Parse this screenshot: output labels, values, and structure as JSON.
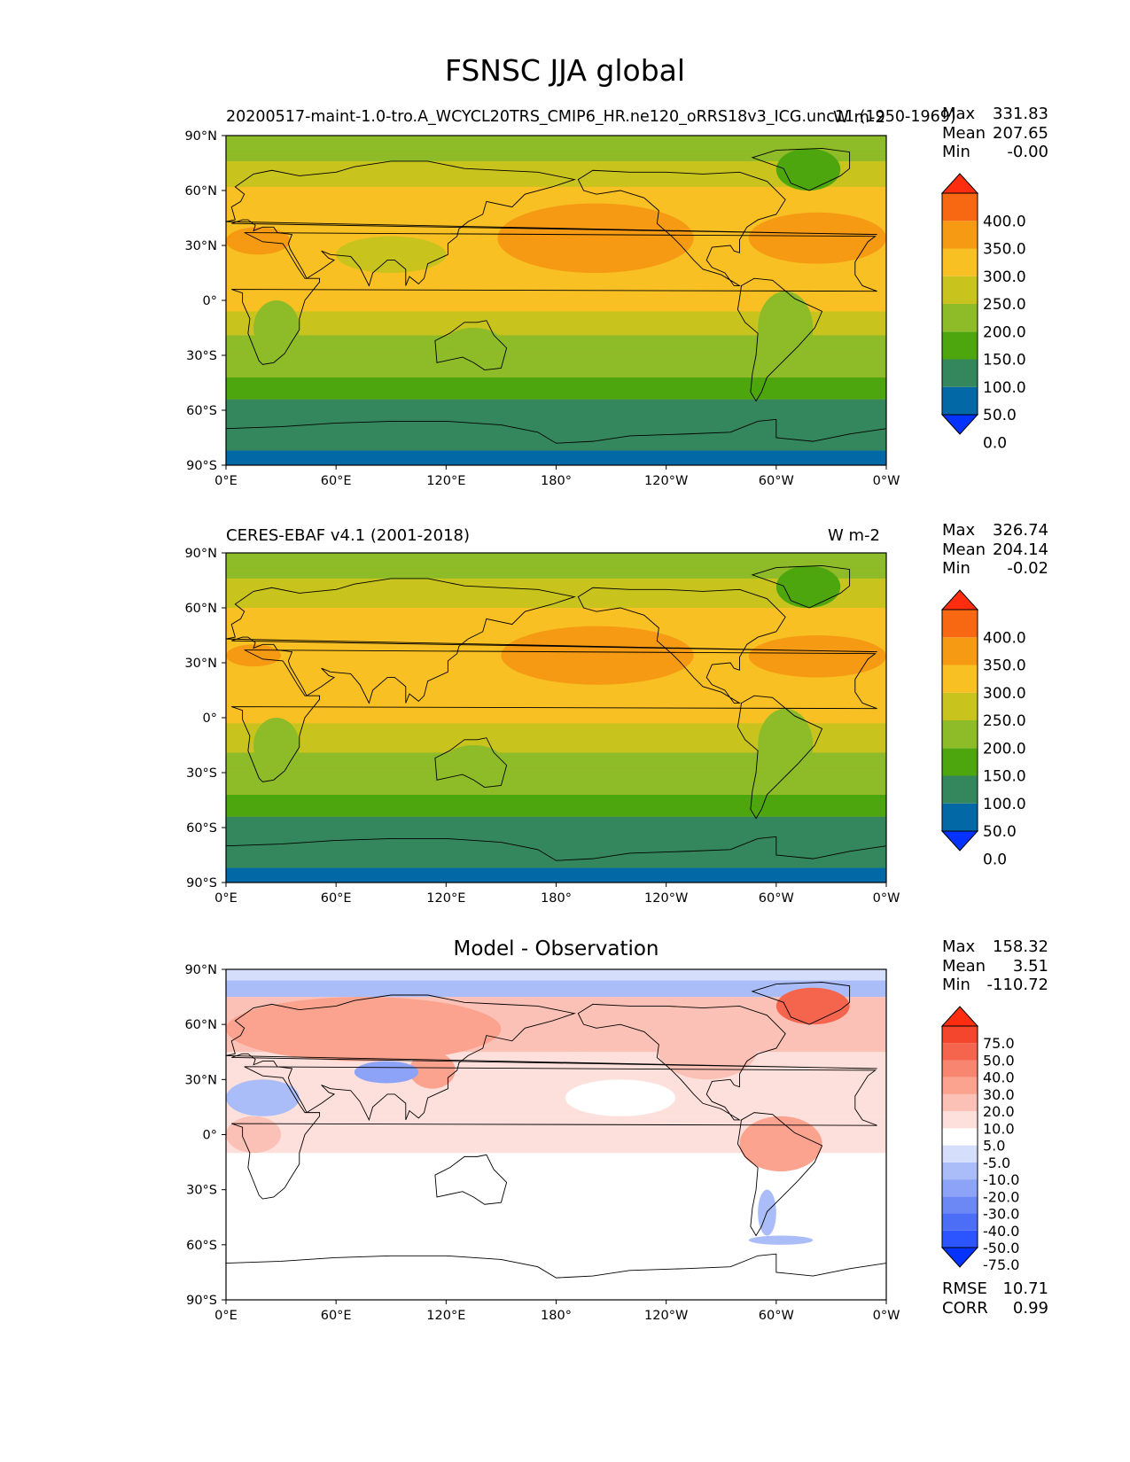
{
  "figure": {
    "title": "FSNSC JJA global"
  },
  "palette": {
    "abs_levels": [
      0,
      50,
      100,
      150,
      200,
      250,
      300,
      350,
      400
    ],
    "abs_colors": [
      "#0433ff",
      "#0369a6",
      "#34875c",
      "#4ea60f",
      "#8dbc28",
      "#c9c31e",
      "#f8c023",
      "#f69a13",
      "#f86812",
      "#ff2d10"
    ],
    "diff_levels": [
      -75,
      -50,
      -40,
      -30,
      -20,
      -10,
      -5,
      5,
      10,
      20,
      30,
      40,
      50,
      75
    ],
    "diff_colors": [
      "#0433ff",
      "#2c55ff",
      "#4c6ef7",
      "#6c88f5",
      "#8ca3f7",
      "#aabdf8",
      "#d5defb",
      "#ffffff",
      "#fde0db",
      "#fcc1b6",
      "#fca38f",
      "#f88570",
      "#f5654e",
      "#f4452d",
      "#ff2d10"
    ],
    "land_outline": "#000000"
  },
  "axes_labels": {
    "lat": [
      "90°N",
      "60°N",
      "30°N",
      "0°",
      "30°S",
      "60°S",
      "90°S"
    ],
    "lon": [
      "0°E",
      "60°E",
      "120°E",
      "180°",
      "120°W",
      "60°W",
      "0°W"
    ]
  },
  "chart_data": [
    {
      "type": "heatmap",
      "panel": "model",
      "title_left": "20200517-maint-1.0-tro.A_WCYCL20TRS_CMIP6_HR.ne120_oRRS18v3_ICG.unc11 (1950-1969)",
      "title_right": "W m-2",
      "stats": {
        "max_label": "Max",
        "max": "331.83",
        "mean_label": "Mean",
        "mean": "207.65",
        "min_label": "Min",
        "min": "-0.00"
      },
      "colorbar_ticks": [
        "400.0",
        "350.0",
        "300.0",
        "250.0",
        "200.0",
        "150.0",
        "100.0",
        "50.0",
        "0.0"
      ],
      "lat_range": [
        -90,
        90
      ],
      "lon_range": [
        0,
        360
      ],
      "zonal_bands": [
        {
          "lat": [
            -90,
            -82
          ],
          "value": 0
        },
        {
          "lat": [
            -82,
            -54
          ],
          "value": 50
        },
        {
          "lat": [
            -54,
            -42
          ],
          "value": 100
        },
        {
          "lat": [
            -42,
            -29
          ],
          "value": 150
        },
        {
          "lat": [
            -29,
            -19
          ],
          "value": 175
        },
        {
          "lat": [
            -19,
            -6
          ],
          "value": 225
        },
        {
          "lat": [
            -6,
            62
          ],
          "value": 275
        },
        {
          "lat": [
            62,
            76
          ],
          "value": 225
        },
        {
          "lat": [
            76,
            80
          ],
          "value": 175
        },
        {
          "lat": [
            80,
            90
          ],
          "value": 150
        }
      ],
      "patches": [
        {
          "lat": [
            15,
            53
          ],
          "lon": [
            148,
            255
          ],
          "value": 325
        },
        {
          "lat": [
            20,
            48
          ],
          "lon": [
            285,
            360
          ],
          "value": 325
        },
        {
          "lat": [
            25,
            40
          ],
          "lon": [
            0,
            35
          ],
          "value": 325
        },
        {
          "lat": [
            15,
            35
          ],
          "lon": [
            60,
            120
          ],
          "value": 225
        },
        {
          "lat": [
            -30,
            -15
          ],
          "lon": [
            120,
            150
          ],
          "value": 175
        },
        {
          "lat": [
            -35,
            5
          ],
          "lon": [
            290,
            320
          ],
          "value": 175
        },
        {
          "lat": [
            -30,
            0
          ],
          "lon": [
            15,
            40
          ],
          "value": 175
        },
        {
          "lat": [
            60,
            83
          ],
          "lon": [
            300,
            335
          ],
          "value": 125
        }
      ]
    },
    {
      "type": "heatmap",
      "panel": "observation",
      "title_left": "CERES-EBAF v4.1 (2001-2018)",
      "title_right": "W m-2",
      "stats": {
        "max_label": "Max",
        "max": "326.74",
        "mean_label": "Mean",
        "mean": "204.14",
        "min_label": "Min",
        "min": "-0.02"
      },
      "colorbar_ticks": [
        "400.0",
        "350.0",
        "300.0",
        "250.0",
        "200.0",
        "150.0",
        "100.0",
        "50.0",
        "0.0"
      ],
      "lat_range": [
        -90,
        90
      ],
      "lon_range": [
        0,
        360
      ],
      "zonal_bands": [
        {
          "lat": [
            -90,
            -82
          ],
          "value": 0
        },
        {
          "lat": [
            -82,
            -54
          ],
          "value": 50
        },
        {
          "lat": [
            -54,
            -42
          ],
          "value": 100
        },
        {
          "lat": [
            -42,
            -29
          ],
          "value": 150
        },
        {
          "lat": [
            -29,
            -19
          ],
          "value": 175
        },
        {
          "lat": [
            -19,
            -3
          ],
          "value": 225
        },
        {
          "lat": [
            -3,
            60
          ],
          "value": 275
        },
        {
          "lat": [
            60,
            76
          ],
          "value": 225
        },
        {
          "lat": [
            76,
            80
          ],
          "value": 175
        },
        {
          "lat": [
            80,
            90
          ],
          "value": 150
        }
      ],
      "patches": [
        {
          "lat": [
            18,
            50
          ],
          "lon": [
            150,
            255
          ],
          "value": 325
        },
        {
          "lat": [
            22,
            45
          ],
          "lon": [
            285,
            360
          ],
          "value": 325
        },
        {
          "lat": [
            28,
            40
          ],
          "lon": [
            0,
            30
          ],
          "value": 325
        },
        {
          "lat": [
            -30,
            -15
          ],
          "lon": [
            120,
            150
          ],
          "value": 175
        },
        {
          "lat": [
            -35,
            5
          ],
          "lon": [
            290,
            320
          ],
          "value": 175
        },
        {
          "lat": [
            -30,
            0
          ],
          "lon": [
            15,
            40
          ],
          "value": 175
        },
        {
          "lat": [
            60,
            83
          ],
          "lon": [
            300,
            335
          ],
          "value": 125
        }
      ]
    },
    {
      "type": "heatmap",
      "panel": "difference",
      "title_center": "Model - Observation",
      "stats": {
        "max_label": "Max",
        "max": "158.32",
        "mean_label": "Mean",
        "mean": "3.51",
        "min_label": "Min",
        "min": "-110.72"
      },
      "extra_stats": {
        "rmse_label": "RMSE",
        "rmse": "10.71",
        "corr_label": "CORR",
        "corr": "0.99"
      },
      "colorbar_ticks": [
        "75.0",
        "50.0",
        "40.0",
        "30.0",
        "20.0",
        "10.0",
        "5.0",
        "-5.0",
        "-10.0",
        "-20.0",
        "-30.0",
        "-40.0",
        "-50.0",
        "-75.0"
      ],
      "lat_range": [
        -90,
        90
      ],
      "lon_range": [
        0,
        360
      ],
      "zonal_bands": [
        {
          "lat": [
            -90,
            -60
          ],
          "value": 0
        },
        {
          "lat": [
            -60,
            -10
          ],
          "value": 0
        },
        {
          "lat": [
            -10,
            10
          ],
          "value": 7
        },
        {
          "lat": [
            10,
            45
          ],
          "value": 7
        },
        {
          "lat": [
            45,
            75
          ],
          "value": 12
        },
        {
          "lat": [
            75,
            84
          ],
          "value": -15
        },
        {
          "lat": [
            84,
            90
          ],
          "value": -8
        }
      ],
      "patches": [
        {
          "lat": [
            40,
            75
          ],
          "lon": [
            0,
            150
          ],
          "value": 22
        },
        {
          "lat": [
            25,
            45
          ],
          "lon": [
            100,
            125
          ],
          "value": 25
        },
        {
          "lat": [
            28,
            40
          ],
          "lon": [
            70,
            105
          ],
          "value": -25
        },
        {
          "lat": [
            10,
            30
          ],
          "lon": [
            0,
            40
          ],
          "value": -15
        },
        {
          "lat": [
            15,
            45
          ],
          "lon": [
            150,
            235
          ],
          "value": 7
        },
        {
          "lat": [
            10,
            30
          ],
          "lon": [
            185,
            245
          ],
          "value": 0
        },
        {
          "lat": [
            30,
            65
          ],
          "lon": [
            235,
            290
          ],
          "value": 15
        },
        {
          "lat": [
            -20,
            10
          ],
          "lon": [
            280,
            325
          ],
          "value": 22
        },
        {
          "lat": [
            60,
            80
          ],
          "lon": [
            300,
            340
          ],
          "value": 40
        },
        {
          "lat": [
            -55,
            -30
          ],
          "lon": [
            290,
            300
          ],
          "value": -12
        },
        {
          "lat": [
            -60,
            -55
          ],
          "lon": [
            285,
            320
          ],
          "value": -15
        },
        {
          "lat": [
            -10,
            10
          ],
          "lon": [
            0,
            30
          ],
          "value": 12
        }
      ]
    }
  ]
}
